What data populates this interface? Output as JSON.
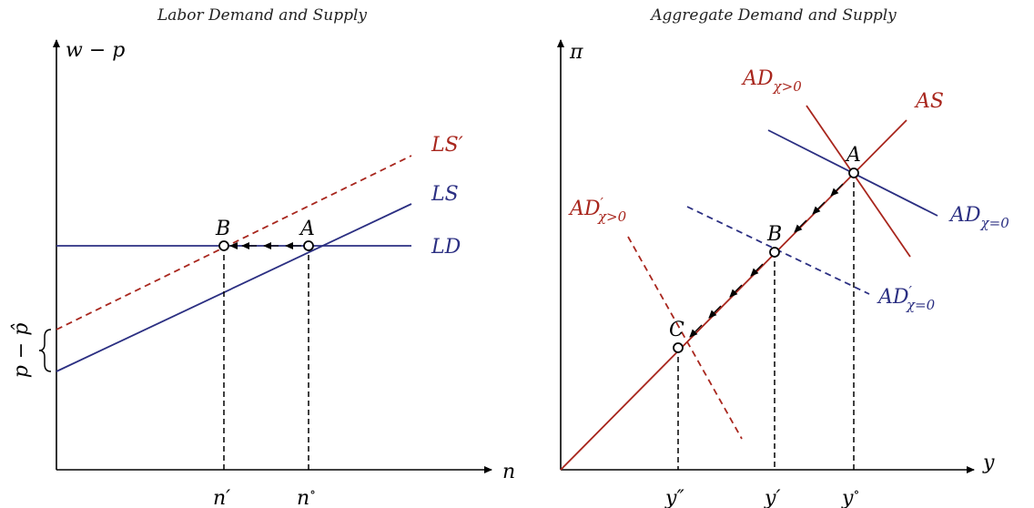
{
  "left": {
    "title": "Labor Demand and Supply",
    "y_axis_label": "w − p",
    "x_axis_label": "n",
    "brace_label": "p − p̂",
    "curves": {
      "ld": "LD",
      "ls": "LS",
      "ls_shift": "LS"
    },
    "points": {
      "a": "A",
      "b": "B"
    },
    "ticks": {
      "n_prime": "n",
      "n_circ": "n"
    }
  },
  "right": {
    "title": "Aggregate Demand and Supply",
    "y_axis_label": "π",
    "x_axis_label": "y",
    "curves": {
      "as": "AS",
      "ad_pos": {
        "main": "AD",
        "sub": "χ>0"
      },
      "ad_zero": {
        "main": "AD",
        "sub": "χ=0"
      },
      "ad_zero_shift": {
        "main": "AD",
        "sub": "χ=0"
      },
      "ad_pos_shift": {
        "main": "AD",
        "sub": "χ>0"
      }
    },
    "points": {
      "a": "A",
      "b": "B",
      "c": "C"
    },
    "ticks": {
      "y_dprime": "y",
      "y_prime": "y",
      "y_circ": "y"
    }
  },
  "colors": {
    "blue": "#2b2f82",
    "red": "#a8261d"
  }
}
